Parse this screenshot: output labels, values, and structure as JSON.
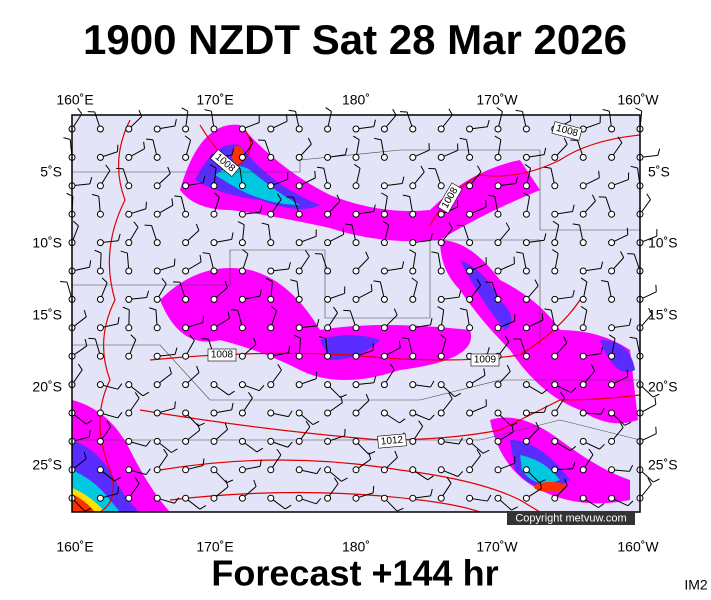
{
  "header": {
    "title": "1900 NZDT Sat 28 Mar 2026"
  },
  "map": {
    "lon_labels": [
      "160˚E",
      "170˚E",
      "180˚",
      "170˚W",
      "160˚W"
    ],
    "lat_labels": [
      "5˚S",
      "10˚S",
      "15˚S",
      "20˚S",
      "25˚S"
    ],
    "isobar_labels": [
      "1008",
      "1008",
      "1008",
      "1008",
      "1009",
      "1012"
    ],
    "copyright": "Copyright metvuw.com"
  },
  "footer": {
    "forecast": "Forecast +144 hr",
    "code": "IM2"
  }
}
